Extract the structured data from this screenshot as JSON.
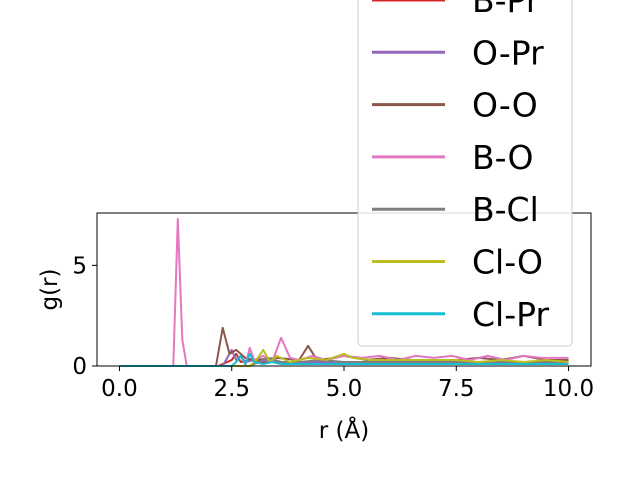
{
  "chart_data": {
    "type": "line",
    "xlabel": "r (Å)",
    "ylabel": "g(r)",
    "xlim": [
      -0.5,
      10.5
    ],
    "ylim": [
      0,
      7.6
    ],
    "xticks": [
      0.0,
      2.5,
      5.0,
      7.5,
      10.0
    ],
    "xtick_labels": [
      "0.0",
      "2.5",
      "5.0",
      "7.5",
      "10.0"
    ],
    "yticks": [
      0,
      5
    ],
    "ytick_labels": [
      "0",
      "5"
    ],
    "grid": false,
    "legend_position": "top-right",
    "series": [
      {
        "name": "B-Pr",
        "color": "#d62728",
        "x": [
          0,
          2.2,
          2.5,
          2.6,
          2.7,
          2.9,
          3.2,
          3.6,
          4.0,
          5.0,
          6.0,
          7.0,
          8.0,
          9.0,
          10.0
        ],
        "y": [
          0,
          0,
          0.3,
          0.6,
          0.2,
          0.3,
          0.2,
          0.2,
          0.2,
          0.2,
          0.2,
          0.2,
          0.2,
          0.2,
          0.2
        ]
      },
      {
        "name": "O-Pr",
        "color": "#9467bd",
        "x": [
          0,
          2.3,
          2.4,
          2.5,
          2.6,
          2.7,
          2.8,
          3.0,
          3.5,
          4.0,
          5.0,
          6.0,
          7.0,
          8.0,
          9.0,
          10.0
        ],
        "y": [
          0,
          0,
          0.4,
          0.8,
          0.3,
          0.5,
          0.2,
          0.3,
          0.2,
          0.2,
          0.2,
          0.2,
          0.2,
          0.2,
          0.2,
          0.2
        ]
      },
      {
        "name": "O-O",
        "color": "#8c564b",
        "x": [
          0,
          2.15,
          2.3,
          2.45,
          2.6,
          2.8,
          3.0,
          3.5,
          4.0,
          4.2,
          4.4,
          4.8,
          5.0,
          5.5,
          6.0,
          6.5,
          7.0,
          7.5,
          8.0,
          8.5,
          9.0,
          9.5,
          10.0
        ],
        "y": [
          0,
          0,
          1.9,
          0.6,
          0.8,
          0.4,
          0.3,
          0.4,
          0.3,
          1.0,
          0.3,
          0.4,
          0.5,
          0.3,
          0.4,
          0.3,
          0.3,
          0.3,
          0.4,
          0.3,
          0.5,
          0.3,
          0.3
        ]
      },
      {
        "name": "B-O",
        "color": "#e377c2",
        "x": [
          0,
          1.2,
          1.3,
          1.4,
          1.5,
          2.8,
          2.9,
          3.0,
          3.2,
          3.4,
          3.6,
          3.8,
          4.0,
          4.3,
          4.6,
          5.0,
          5.4,
          5.8,
          6.2,
          6.6,
          7.0,
          7.4,
          7.8,
          8.2,
          8.6,
          9.0,
          9.4,
          9.8,
          10.0
        ],
        "y": [
          0,
          0,
          7.3,
          1.3,
          0,
          0,
          0.9,
          0.3,
          0.5,
          0.2,
          1.4,
          0.4,
          0.3,
          0.5,
          0.3,
          0.5,
          0.4,
          0.5,
          0.3,
          0.5,
          0.4,
          0.5,
          0.3,
          0.5,
          0.3,
          0.5,
          0.4,
          0.4,
          0.4
        ]
      },
      {
        "name": "B-Cl",
        "color": "#7f7f7f",
        "x": [
          0,
          2.9,
          3.1,
          3.3,
          3.6,
          4.0,
          4.5,
          5.0,
          6.0,
          7.0,
          8.0,
          9.0,
          10.0
        ],
        "y": [
          0,
          0,
          0.2,
          0.4,
          0.2,
          0.2,
          0.3,
          0.2,
          0.2,
          0.2,
          0.2,
          0.2,
          0.2
        ]
      },
      {
        "name": "Cl-O",
        "color": "#bcbd22",
        "x": [
          0,
          2.9,
          3.05,
          3.2,
          3.35,
          3.5,
          3.8,
          4.2,
          4.6,
          5.0,
          5.2,
          5.6,
          6.0,
          6.5,
          7.0,
          7.5,
          8.0,
          8.5,
          9.0,
          9.5,
          10.0
        ],
        "y": [
          0,
          0,
          0.3,
          0.8,
          0.2,
          0.5,
          0.2,
          0.4,
          0.3,
          0.6,
          0.4,
          0.3,
          0.3,
          0.3,
          0.3,
          0.3,
          0.2,
          0.3,
          0.2,
          0.3,
          0.2
        ]
      },
      {
        "name": "Cl-Pr",
        "color": "#17becf",
        "x": [
          0,
          2.5,
          2.6,
          2.7,
          2.8,
          2.9,
          3.0,
          3.2,
          3.4,
          3.6,
          4.0,
          4.5,
          5.0,
          6.0,
          7.0,
          8.0,
          9.0,
          10.0
        ],
        "y": [
          0,
          0,
          0.2,
          0.5,
          0.1,
          0.6,
          0.2,
          0.1,
          0.2,
          0.1,
          0.1,
          0.1,
          0.1,
          0.1,
          0.1,
          0.1,
          0.1,
          0.1
        ]
      }
    ]
  }
}
